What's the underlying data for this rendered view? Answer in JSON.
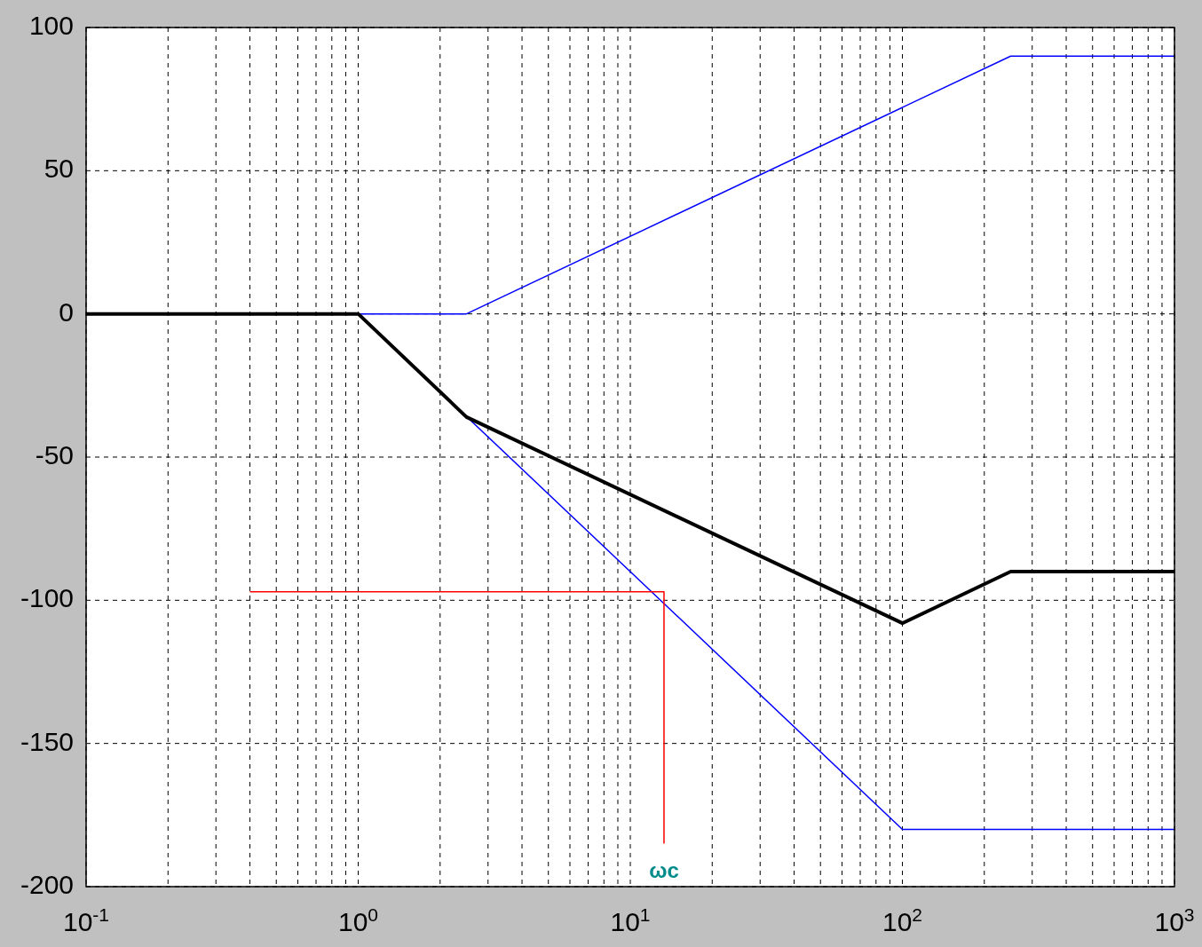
{
  "chart_data": {
    "type": "line",
    "log": "x",
    "grid": true,
    "line_style": "solid",
    "xlim": [
      0.1,
      1000
    ],
    "xticks": [
      {
        "value": 0.1,
        "label": "10$^{-1}$"
      },
      {
        "value": 0.2,
        "label": null
      },
      {
        "value": 0.3,
        "label": null
      },
      {
        "value": 0.4,
        "label": null
      },
      {
        "value": 0.5,
        "label": null
      },
      {
        "value": 0.6,
        "label": null
      },
      {
        "value": 0.7,
        "label": null
      },
      {
        "value": 0.8,
        "label": null
      },
      {
        "value": 0.9,
        "label": null
      },
      {
        "value": 1,
        "label": "10$^{0}$"
      },
      {
        "value": 2,
        "label": null
      },
      {
        "value": 3,
        "label": null
      },
      {
        "value": 4,
        "label": null
      },
      {
        "value": 5,
        "label": null
      },
      {
        "value": 6,
        "label": null
      },
      {
        "value": 7,
        "label": null
      },
      {
        "value": 8,
        "label": null
      },
      {
        "value": 9,
        "label": null
      },
      {
        "value": 10,
        "label": "10$^{1}$"
      },
      {
        "value": 20,
        "label": null
      },
      {
        "value": 30,
        "label": null
      },
      {
        "value": 40,
        "label": null
      },
      {
        "value": 50,
        "label": null
      },
      {
        "value": 60,
        "label": null
      },
      {
        "value": 70,
        "label": null
      },
      {
        "value": 80,
        "label": null
      },
      {
        "value": 90,
        "label": null
      },
      {
        "value": 100,
        "label": "10$^{2}$"
      },
      {
        "value": 200,
        "label": null
      },
      {
        "value": 300,
        "label": null
      },
      {
        "value": 400,
        "label": null
      },
      {
        "value": 500,
        "label": null
      },
      {
        "value": 600,
        "label": null
      },
      {
        "value": 700,
        "label": null
      },
      {
        "value": 800,
        "label": null
      },
      {
        "value": 900,
        "label": null
      },
      {
        "value": 1000,
        "label": "10$^{3}$"
      }
    ],
    "ylim": [
      -200,
      100
    ],
    "yticks": [
      -200,
      -150,
      -100,
      -50,
      0,
      50,
      100
    ],
    "series": [
      {
        "color": "#0000ff",
        "x": [
          0.1,
          2.5,
          250,
          1000
        ],
        "values": [
          0,
          0,
          90,
          90
        ]
      },
      {
        "color": "#0000ff",
        "x": [
          0.1,
          1,
          100,
          1000
        ],
        "values": [
          0,
          0,
          -180,
          -180
        ]
      },
      {
        "color": "#000000",
        "x": [
          0.1,
          1,
          2.5,
          100,
          250,
          1000
        ],
        "values": [
          0,
          0,
          -36,
          -108,
          -90,
          -90
        ]
      },
      {
        "color": "#ff0000",
        "x": [
          0.4,
          13.3,
          13.3
        ],
        "values": [
          -97,
          -97,
          -185
        ]
      }
    ],
    "annotations": [
      "ωc"
    ]
  }
}
